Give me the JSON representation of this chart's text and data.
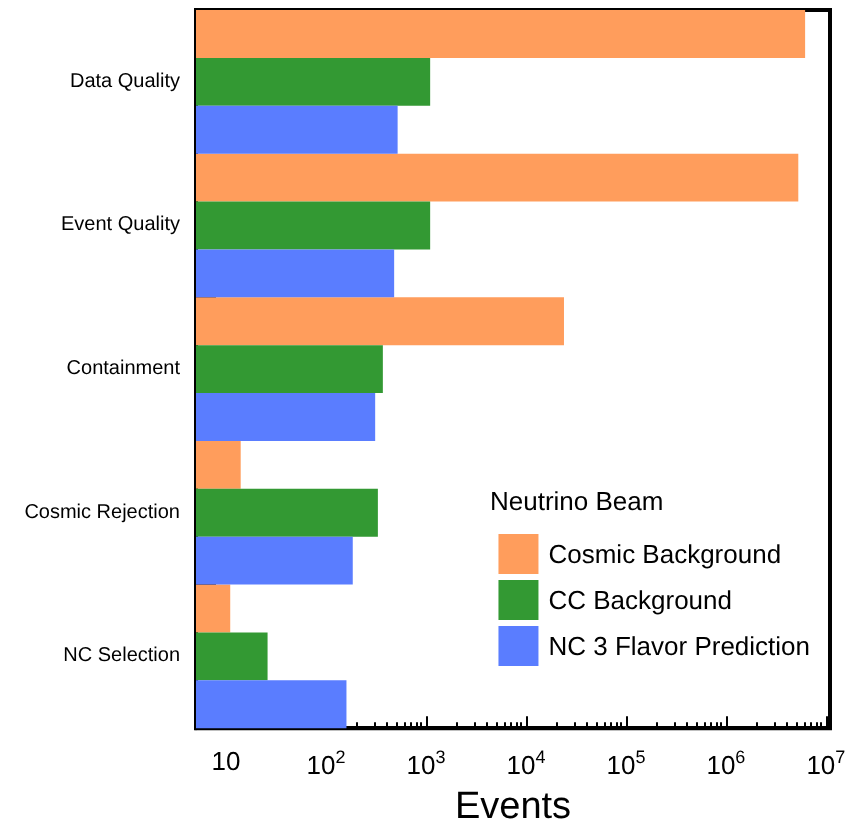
{
  "chart_data": {
    "type": "bar",
    "orientation": "horizontal",
    "xlabel": "Events",
    "legend_title": "Neutrino Beam",
    "legend": "bottom right",
    "grid": false,
    "log": "x",
    "categories": [
      "Data Quality",
      "Event Quality",
      "Containment",
      "Cosmic Rejection",
      "NC Selection"
    ],
    "xlim": [
      5,
      11000000
    ],
    "xticks": [
      10,
      {
        "value": 100,
        "label": "10$^{2}$"
      },
      {
        "value": 1000,
        "label": "10$^{3}$"
      },
      {
        "value": 10000,
        "label": "10$^{4}$"
      },
      {
        "value": 100000,
        "label": "10$^{5}$"
      },
      {
        "value": 1000000,
        "label": "10$^{6}$"
      },
      {
        "value": 10000000,
        "label": "10$^{7}$"
      }
    ],
    "series": [
      {
        "name": "Cosmic Background",
        "color": "#ff9d5c",
        "values": [
          6200000,
          5300000,
          24000,
          14,
          11
        ]
      },
      {
        "name": "CC Background",
        "color": "#339933",
        "values": [
          1100,
          1100,
          370,
          330,
          26
        ]
      },
      {
        "name": "NC 3 Flavor Prediction",
        "color": "#5a7dff",
        "values": [
          520,
          480,
          310,
          185,
          160
        ]
      }
    ]
  }
}
